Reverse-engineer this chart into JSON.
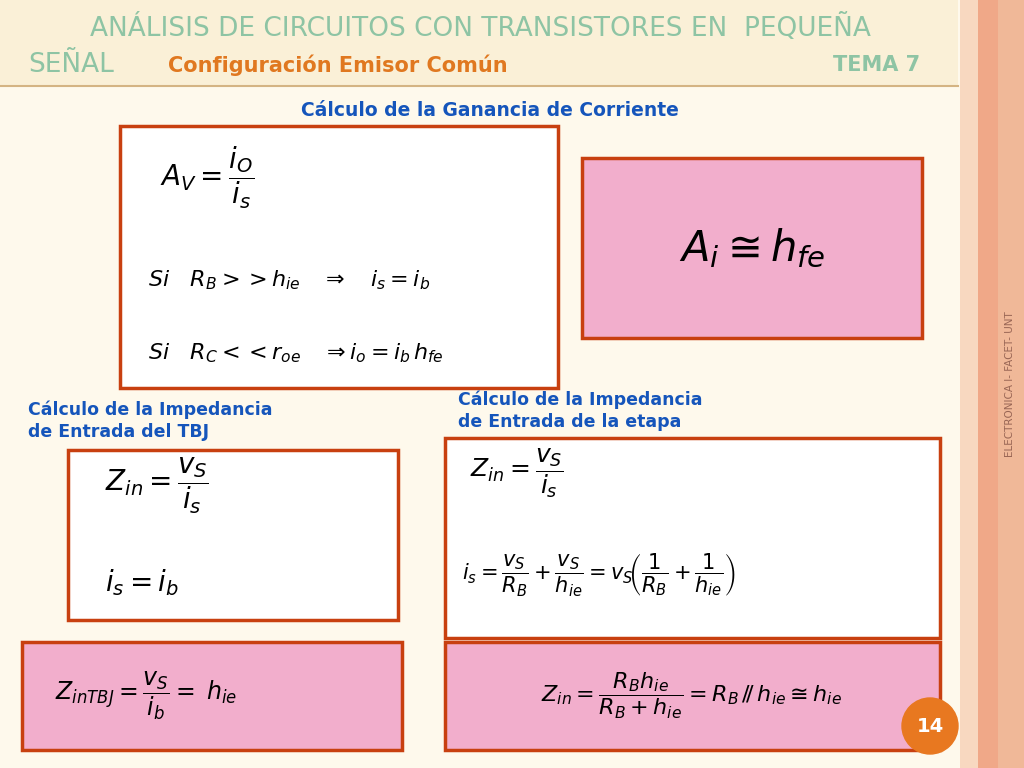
{
  "bg_color": "#FEF9EC",
  "header_bg": "#FAF0D7",
  "border_color": "#D4B483",
  "title_line1": "ANÁLISIS DE CIRCUITOS CON TRANSISTORES EN  PEQUEÑA",
  "title_line2": "SEÑAL",
  "subtitle": "Configuración Emisor Común",
  "tema": "TEMA 7",
  "title_color": "#8EC4A4",
  "subtitle_color": "#E07820",
  "tema_color": "#8EC4A4",
  "blue_color": "#1555BB",
  "section_border": "#C84010",
  "pink_bg": "#F2AECC",
  "pink_border": "#C84010",
  "sidebar_bg": "#F0B090",
  "sidebar_text": "ELECTRONICA I- FACET- UNT",
  "sidebar_text_color": "#996655",
  "page_number": "14",
  "page_num_bg": "#E87820",
  "ganancia_title": "Cálculo de la Ganancia de Corriente",
  "impedancia_tbj_title1": "Cálculo de la Impedancia",
  "impedancia_tbj_title2": "de Entrada del TBJ",
  "impedancia_etapa_title1": "Cálculo de la Impedancia",
  "impedancia_etapa_title2": "de Entrada de la etapa"
}
